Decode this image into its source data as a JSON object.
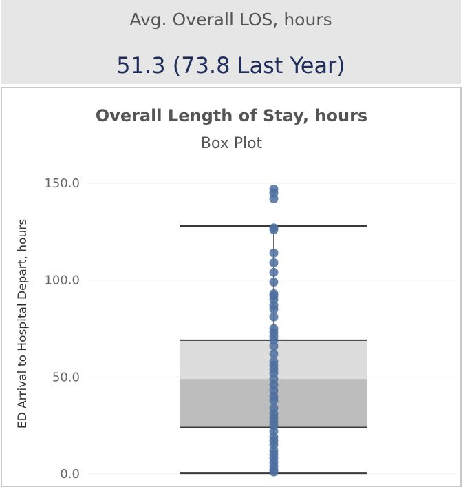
{
  "kpi": {
    "label": "Avg. Overall LOS, hours",
    "value": "51.3 (73.8 Last Year)"
  },
  "chart_data": {
    "type": "box",
    "title": "Overall Length of Stay, hours",
    "subtitle": "Box Plot",
    "ylabel": "ED Arrival to Hospital Depart, hours",
    "ylim": [
      0,
      150
    ],
    "yticks": [
      0,
      50,
      100,
      150
    ],
    "ytick_labels": [
      "0.0",
      "50.0",
      "100.0",
      "150.0"
    ],
    "grid": true,
    "box": {
      "whisker_low": 0.5,
      "q1": 24,
      "median": 49,
      "q3": 69,
      "whisker_high": 128
    },
    "points": [
      147,
      145,
      142,
      127,
      126,
      114,
      109,
      104,
      99,
      93,
      92,
      90,
      87,
      85,
      81,
      75,
      73,
      71,
      69,
      66,
      62,
      58,
      56,
      54,
      52,
      49,
      46,
      43,
      40,
      38,
      34,
      31,
      29,
      27,
      25,
      22,
      19,
      17,
      15,
      12,
      10,
      8,
      6,
      4,
      2,
      1
    ],
    "colors": {
      "point": "#4e6e9e",
      "box_upper": "#dcdcdc",
      "box_lower": "#bdbdbd",
      "line": "#3a3a3a",
      "grid": "#ececec"
    }
  }
}
